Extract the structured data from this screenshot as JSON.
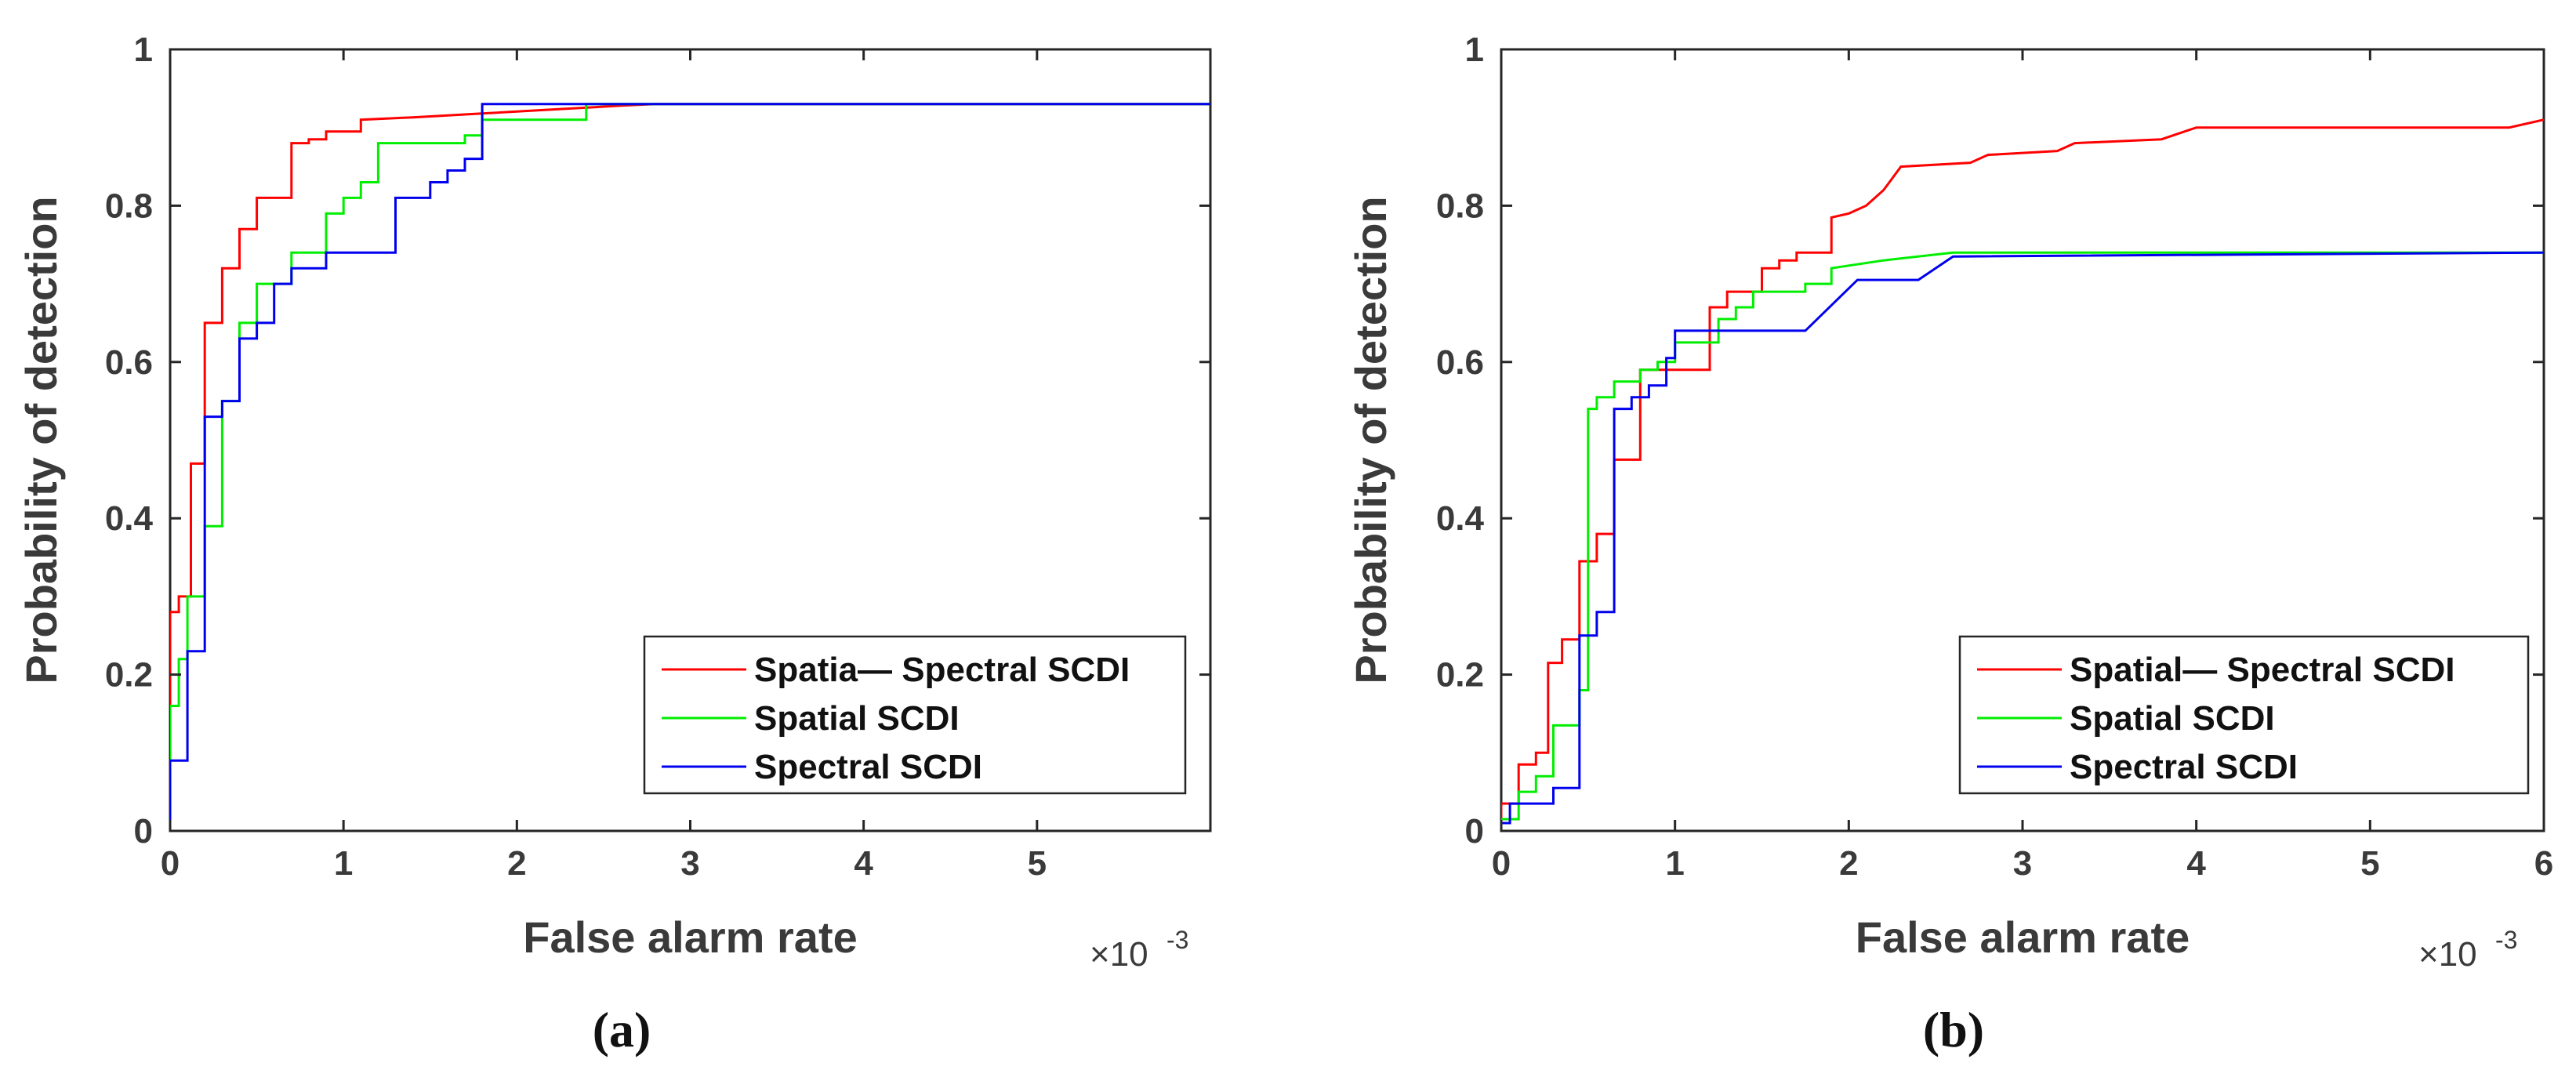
{
  "chart_data": [
    {
      "type": "line",
      "caption": "(a)",
      "xlabel": "False alarm rate",
      "ylabel": "Probability of detection",
      "x_multiplier": "×10",
      "x_multiplier_exp": "-3",
      "xlim": [
        0,
        6
      ],
      "ylim": [
        0,
        1
      ],
      "xticks": [
        0,
        1,
        2,
        3,
        4,
        5
      ],
      "xtick_labels": [
        "0",
        "1",
        "2",
        "3",
        "4",
        "5"
      ],
      "yticks": [
        0,
        0.2,
        0.4,
        0.6,
        0.8,
        1
      ],
      "ytick_labels": [
        "0",
        "0.2",
        "0.4",
        "0.6",
        "0.8",
        "1"
      ],
      "legend_position": "bottom-right",
      "series": [
        {
          "name": "Spatia— Spectral SCDI",
          "color": "#ff0000",
          "x": [
            0,
            0,
            0.05,
            0.05,
            0.12,
            0.12,
            0.2,
            0.2,
            0.3,
            0.3,
            0.4,
            0.4,
            0.5,
            0.5,
            0.7,
            0.7,
            0.8,
            0.8,
            0.9,
            0.9,
            1.1,
            1.1,
            1.4,
            1.8,
            2.2,
            2.6,
            2.8,
            6
          ],
          "y": [
            0,
            0.28,
            0.28,
            0.3,
            0.3,
            0.47,
            0.47,
            0.65,
            0.65,
            0.72,
            0.72,
            0.77,
            0.77,
            0.81,
            0.81,
            0.88,
            0.88,
            0.885,
            0.885,
            0.895,
            0.895,
            0.91,
            0.913,
            0.918,
            0.923,
            0.928,
            0.93,
            0.93
          ]
        },
        {
          "name": "Spatial SCDI",
          "color": "#00ee00",
          "x": [
            0,
            0,
            0.05,
            0.05,
            0.1,
            0.1,
            0.2,
            0.2,
            0.3,
            0.3,
            0.4,
            0.4,
            0.5,
            0.5,
            0.7,
            0.7,
            0.9,
            0.9,
            1.0,
            1.0,
            1.1,
            1.1,
            1.2,
            1.2,
            1.7,
            1.7,
            1.8,
            1.8,
            2.4,
            2.4,
            2.8,
            6
          ],
          "y": [
            0,
            0.16,
            0.16,
            0.22,
            0.22,
            0.3,
            0.3,
            0.39,
            0.39,
            0.55,
            0.55,
            0.65,
            0.65,
            0.7,
            0.7,
            0.74,
            0.74,
            0.79,
            0.79,
            0.81,
            0.81,
            0.83,
            0.83,
            0.88,
            0.88,
            0.89,
            0.89,
            0.91,
            0.91,
            0.93,
            0.93,
            0.93
          ]
        },
        {
          "name": "Spectral SCDI",
          "color": "#0000ee",
          "x": [
            0,
            0,
            0.1,
            0.1,
            0.2,
            0.2,
            0.3,
            0.3,
            0.4,
            0.4,
            0.5,
            0.5,
            0.6,
            0.6,
            0.7,
            0.7,
            0.9,
            0.9,
            1.3,
            1.3,
            1.5,
            1.5,
            1.6,
            1.6,
            1.7,
            1.7,
            1.8,
            1.8,
            2.8,
            6
          ],
          "y": [
            0,
            0.09,
            0.09,
            0.23,
            0.23,
            0.53,
            0.53,
            0.55,
            0.55,
            0.63,
            0.63,
            0.65,
            0.65,
            0.7,
            0.7,
            0.72,
            0.72,
            0.74,
            0.74,
            0.81,
            0.81,
            0.83,
            0.83,
            0.845,
            0.845,
            0.86,
            0.86,
            0.93,
            0.93,
            0.93
          ]
        }
      ]
    },
    {
      "type": "line",
      "caption": "(b)",
      "xlabel": "False alarm rate",
      "ylabel": "Probability of detection",
      "x_multiplier": "×10",
      "x_multiplier_exp": "-3",
      "xlim": [
        0,
        6
      ],
      "ylim": [
        0,
        1
      ],
      "xticks": [
        0,
        1,
        2,
        3,
        4,
        5,
        6
      ],
      "xtick_labels": [
        "0",
        "1",
        "2",
        "3",
        "4",
        "5",
        "6"
      ],
      "yticks": [
        0,
        0.2,
        0.4,
        0.6,
        0.8,
        1
      ],
      "ytick_labels": [
        "0",
        "0.2",
        "0.4",
        "0.6",
        "0.8",
        "1"
      ],
      "legend_position": "bottom-right",
      "series": [
        {
          "name": "Spatial— Spectral SCDI",
          "color": "#ff0000",
          "x": [
            0,
            0,
            0.1,
            0.1,
            0.2,
            0.2,
            0.27,
            0.27,
            0.35,
            0.35,
            0.45,
            0.45,
            0.55,
            0.55,
            0.65,
            0.65,
            0.8,
            0.8,
            0.9,
            0.9,
            1.2,
            1.2,
            1.3,
            1.3,
            1.5,
            1.5,
            1.6,
            1.6,
            1.7,
            1.7,
            1.9,
            1.9,
            2.0,
            2.1,
            2.2,
            2.3,
            2.7,
            2.8,
            3.2,
            3.3,
            3.8,
            4.0,
            5.8,
            6.0
          ],
          "y": [
            0,
            0.035,
            0.035,
            0.085,
            0.085,
            0.1,
            0.1,
            0.215,
            0.215,
            0.245,
            0.245,
            0.345,
            0.345,
            0.38,
            0.38,
            0.475,
            0.475,
            0.59,
            0.59,
            0.59,
            0.59,
            0.67,
            0.67,
            0.69,
            0.69,
            0.72,
            0.72,
            0.73,
            0.73,
            0.74,
            0.74,
            0.785,
            0.79,
            0.8,
            0.82,
            0.85,
            0.855,
            0.865,
            0.87,
            0.88,
            0.885,
            0.9,
            0.9,
            0.91
          ]
        },
        {
          "name": "Spatial SCDI",
          "color": "#00ee00",
          "x": [
            0,
            0,
            0.1,
            0.1,
            0.2,
            0.2,
            0.3,
            0.3,
            0.45,
            0.45,
            0.5,
            0.5,
            0.55,
            0.55,
            0.65,
            0.65,
            0.8,
            0.8,
            0.9,
            0.9,
            1.0,
            1.0,
            1.25,
            1.25,
            1.35,
            1.35,
            1.45,
            1.45,
            1.75,
            1.75,
            1.9,
            1.9,
            2.2,
            2.6,
            6.0
          ],
          "y": [
            0,
            0.015,
            0.015,
            0.05,
            0.05,
            0.07,
            0.07,
            0.135,
            0.135,
            0.18,
            0.18,
            0.54,
            0.54,
            0.555,
            0.555,
            0.575,
            0.575,
            0.59,
            0.59,
            0.6,
            0.6,
            0.625,
            0.625,
            0.655,
            0.655,
            0.67,
            0.67,
            0.69,
            0.69,
            0.7,
            0.7,
            0.72,
            0.73,
            0.74,
            0.74
          ]
        },
        {
          "name": "Spectral SCDI",
          "color": "#0000ee",
          "x": [
            0,
            0,
            0.05,
            0.05,
            0.3,
            0.3,
            0.45,
            0.45,
            0.55,
            0.55,
            0.65,
            0.65,
            0.75,
            0.75,
            0.85,
            0.85,
            0.95,
            0.95,
            1.0,
            1.0,
            1.75,
            2.05,
            2.4,
            2.6,
            6.0
          ],
          "y": [
            0,
            0.01,
            0.01,
            0.035,
            0.035,
            0.055,
            0.055,
            0.25,
            0.25,
            0.28,
            0.28,
            0.54,
            0.54,
            0.555,
            0.555,
            0.57,
            0.57,
            0.605,
            0.605,
            0.64,
            0.64,
            0.705,
            0.705,
            0.735,
            0.74
          ]
        }
      ]
    }
  ]
}
